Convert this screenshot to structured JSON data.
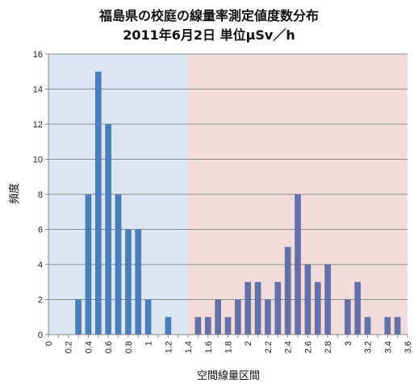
{
  "chart_data": {
    "type": "bar",
    "title": "福島県の校庭の線量率測定値度数分布",
    "subtitle": "2011年6月2日  単位μSv／h",
    "xlabel": "空間線量区間",
    "ylabel": "頻度",
    "ylim": [
      0,
      16
    ],
    "yticks": [
      0,
      2,
      4,
      6,
      8,
      10,
      12,
      14,
      16
    ],
    "xlim": [
      0,
      3.6
    ],
    "xticks": [
      "0",
      "0.2",
      "0.4",
      "0.6",
      "0.8",
      "1",
      "1.2",
      "1.4",
      "1.6",
      "1.8",
      "2",
      "2.2",
      "2.4",
      "2.6",
      "2.8",
      "3",
      "3.2",
      "3.4",
      "3.6"
    ],
    "bin_width": 0.1,
    "grid": "horizontal",
    "background_bands": [
      {
        "from": 0,
        "to": 1.4,
        "color": "#dce6f2"
      },
      {
        "from": 1.4,
        "to": 3.6,
        "color": "#f2dcdb"
      }
    ],
    "bar_colors": {
      "low": "#4a7ebb",
      "high": "#6470a8"
    },
    "bars": [
      {
        "x": 0.3,
        "value": 2
      },
      {
        "x": 0.4,
        "value": 8
      },
      {
        "x": 0.5,
        "value": 15
      },
      {
        "x": 0.6,
        "value": 12
      },
      {
        "x": 0.7,
        "value": 8
      },
      {
        "x": 0.8,
        "value": 6
      },
      {
        "x": 0.9,
        "value": 6
      },
      {
        "x": 1.0,
        "value": 2
      },
      {
        "x": 1.2,
        "value": 1
      },
      {
        "x": 1.5,
        "value": 1
      },
      {
        "x": 1.6,
        "value": 1
      },
      {
        "x": 1.7,
        "value": 2
      },
      {
        "x": 1.8,
        "value": 1
      },
      {
        "x": 1.9,
        "value": 2
      },
      {
        "x": 2.0,
        "value": 3
      },
      {
        "x": 2.1,
        "value": 3
      },
      {
        "x": 2.2,
        "value": 2
      },
      {
        "x": 2.3,
        "value": 3
      },
      {
        "x": 2.4,
        "value": 5
      },
      {
        "x": 2.5,
        "value": 8
      },
      {
        "x": 2.6,
        "value": 4
      },
      {
        "x": 2.7,
        "value": 3
      },
      {
        "x": 2.8,
        "value": 4
      },
      {
        "x": 3.0,
        "value": 2
      },
      {
        "x": 3.1,
        "value": 3
      },
      {
        "x": 3.2,
        "value": 1
      },
      {
        "x": 3.4,
        "value": 1
      },
      {
        "x": 3.5,
        "value": 1
      }
    ]
  }
}
